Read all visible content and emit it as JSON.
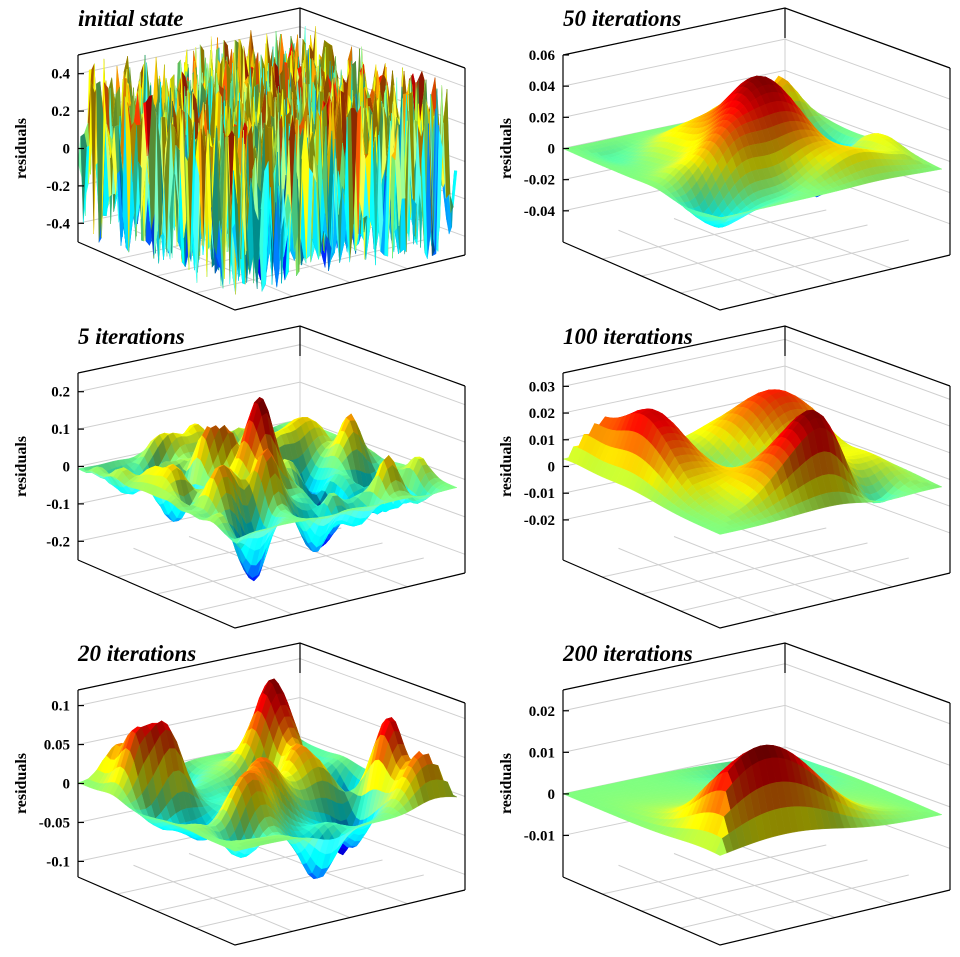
{
  "chart_data": [
    {
      "type": "surface",
      "title": "initial state",
      "ylabel": "residuals",
      "yticks": [
        "0.4",
        "0.2",
        "0",
        "-0.2",
        "-0.4"
      ],
      "ytick_values": [
        0.4,
        0.2,
        0,
        -0.2,
        -0.4
      ],
      "zlim": [
        -0.5,
        0.5
      ],
      "iterations": 0,
      "colormap": "jet",
      "grid": true
    },
    {
      "type": "surface",
      "title": "50 iterations",
      "ylabel": "residuals",
      "yticks": [
        "0.06",
        "0.04",
        "0.02",
        "0",
        "-0.02",
        "-0.04"
      ],
      "ytick_values": [
        0.06,
        0.04,
        0.02,
        0,
        -0.02,
        -0.04
      ],
      "zlim": [
        -0.06,
        0.06
      ],
      "iterations": 50,
      "colormap": "jet",
      "grid": true
    },
    {
      "type": "surface",
      "title": "5 iterations",
      "ylabel": "residuals",
      "yticks": [
        "0.2",
        "0.1",
        "0",
        "-0.1",
        "-0.2"
      ],
      "ytick_values": [
        0.2,
        0.1,
        0,
        -0.1,
        -0.2
      ],
      "zlim": [
        -0.25,
        0.25
      ],
      "iterations": 5,
      "colormap": "jet",
      "grid": true
    },
    {
      "type": "surface",
      "title": "100 iterations",
      "ylabel": "residuals",
      "yticks": [
        "0.03",
        "0.02",
        "0.01",
        "0",
        "-0.01",
        "-0.02"
      ],
      "ytick_values": [
        0.03,
        0.02,
        0.01,
        0,
        -0.01,
        -0.02
      ],
      "zlim": [
        -0.035,
        0.035
      ],
      "iterations": 100,
      "colormap": "jet",
      "grid": true
    },
    {
      "type": "surface",
      "title": "20 iterations",
      "ylabel": "residuals",
      "yticks": [
        "0.1",
        "0.05",
        "0",
        "-0.05",
        "-0.1"
      ],
      "ytick_values": [
        0.1,
        0.05,
        0,
        -0.05,
        -0.1
      ],
      "zlim": [
        -0.12,
        0.12
      ],
      "iterations": 20,
      "colormap": "jet",
      "grid": true
    },
    {
      "type": "surface",
      "title": "200 iterations",
      "ylabel": "residuals",
      "yticks": [
        "0.02",
        "0.01",
        "0",
        "-0.01"
      ],
      "ytick_values": [
        0.02,
        0.01,
        0,
        -0.01
      ],
      "zlim": [
        -0.02,
        0.025
      ],
      "iterations": 200,
      "colormap": "jet",
      "grid": true
    }
  ]
}
